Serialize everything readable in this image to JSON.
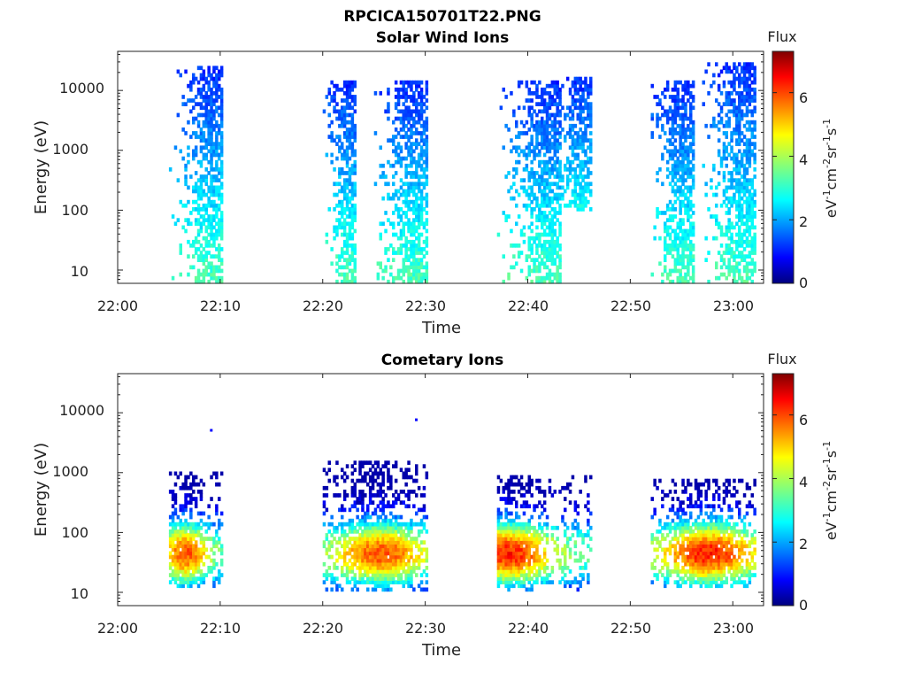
{
  "figure": {
    "title": "RPCICA150701T22.PNG",
    "colorbar_label": "Flux"
  },
  "colors": {
    "colormap": [
      "#00007f",
      "#0000ff",
      "#007fff",
      "#00ffff",
      "#7fff7f",
      "#ffff00",
      "#ff7f00",
      "#ff0000",
      "#7f0000"
    ],
    "axes": "#222222"
  },
  "chart_data": [
    {
      "type": "heatmap",
      "title": "Solar Wind Ions",
      "xlabel": "Time",
      "ylabel": "Energy (eV)",
      "x_range": [
        "22:00",
        "23:03"
      ],
      "y_scale": "log",
      "ylim": [
        6,
        45000
      ],
      "x_ticks": [
        "22:00",
        "22:10",
        "22:20",
        "22:30",
        "22:40",
        "22:50",
        "23:00"
      ],
      "y_ticks": [
        "10",
        "100",
        "1000",
        "10000"
      ],
      "colorbar": {
        "label": "Flux",
        "unit": "eV-1cm-2sr-1s-1",
        "range": [
          0,
          7.3
        ],
        "ticks": [
          "0",
          "2",
          "4",
          "6"
        ]
      },
      "bursts": [
        {
          "start": "22:05",
          "end": "22:10",
          "peak": "22:09.5",
          "emin": 6,
          "emax": 25000,
          "flux_low_energy": 3.3,
          "flux_high_energy": 1.2
        },
        {
          "start": "22:20",
          "end": "22:23",
          "peak": "22:22.5",
          "emin": 6,
          "emax": 15000,
          "flux_low_energy": 3.3,
          "flux_high_energy": 1.2
        },
        {
          "start": "22:25",
          "end": "22:30",
          "peak": "22:29",
          "emin": 6,
          "emax": 15000,
          "flux_low_energy": 3.3,
          "flux_high_energy": 1.2
        },
        {
          "start": "22:37",
          "end": "22:43",
          "peak": "22:42",
          "emin": 6,
          "emax": 15000,
          "flux_low_energy": 3.3,
          "flux_high_energy": 1.2
        },
        {
          "start": "22:43",
          "end": "22:46",
          "peak": "22:45",
          "emin": 100,
          "emax": 18000,
          "flux_low_energy": 2.8,
          "flux_high_energy": 1.2
        },
        {
          "start": "22:52",
          "end": "22:56",
          "peak": "22:55",
          "emin": 6,
          "emax": 15000,
          "flux_low_energy": 3.3,
          "flux_high_energy": 1.2
        },
        {
          "start": "22:57",
          "end": "23:02",
          "peak": "23:01",
          "emin": 6,
          "emax": 30000,
          "flux_low_energy": 3.3,
          "flux_high_energy": 1.2
        }
      ]
    },
    {
      "type": "heatmap",
      "title": "Cometary Ions",
      "xlabel": "Time",
      "ylabel": "Energy (eV)",
      "x_range": [
        "22:00",
        "23:03"
      ],
      "y_scale": "log",
      "ylim": [
        6,
        45000
      ],
      "x_ticks": [
        "22:00",
        "22:10",
        "22:20",
        "22:30",
        "22:40",
        "22:50",
        "23:00"
      ],
      "y_ticks": [
        "10",
        "100",
        "1000",
        "10000"
      ],
      "colorbar": {
        "label": "Flux",
        "unit": "eV-1cm-2sr-1s-1",
        "range": [
          0,
          7.3
        ],
        "ticks": [
          "0",
          "2",
          "4",
          "6"
        ]
      },
      "bursts": [
        {
          "start": "22:05",
          "end": "22:10",
          "peak": "22:06.5",
          "center_energy": 45,
          "emin": 12,
          "emax": 1000,
          "peak_flux": 5.8
        },
        {
          "start": "22:20",
          "end": "22:30",
          "peak": "22:25.5",
          "center_energy": 45,
          "emin": 10,
          "emax": 1500,
          "peak_flux": 5.8
        },
        {
          "start": "22:37",
          "end": "22:46",
          "peak": "22:38",
          "center_energy": 45,
          "emin": 10,
          "emax": 900,
          "peak_flux": 6.2
        },
        {
          "start": "22:52",
          "end": "23:02",
          "peak": "22:57.5",
          "center_energy": 45,
          "emin": 12,
          "emax": 800,
          "peak_flux": 6.2
        }
      ],
      "isolated_points": [
        {
          "time": "22:09",
          "energy": 5000
        },
        {
          "time": "22:29",
          "energy": 7500
        }
      ]
    }
  ],
  "superscripts": {
    "minus_one": "-1",
    "minus_two": "-2"
  },
  "unit_parts": {
    "ev": "eV",
    "cm": "cm",
    "sr": "sr",
    "s": "s"
  }
}
